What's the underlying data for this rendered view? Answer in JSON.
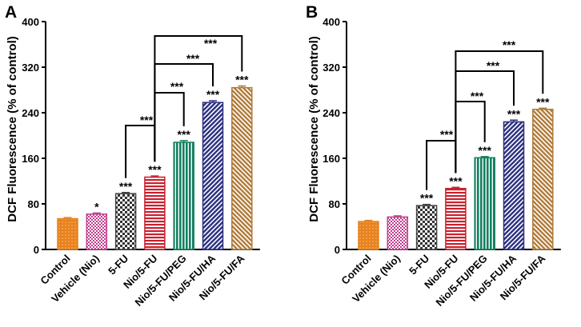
{
  "colors": {
    "orange": "#E8821E",
    "pink": "#C0408E",
    "gray": "#444444",
    "red": "#C8202E",
    "green": "#138060",
    "navy": "#2B2F80",
    "tan": "#B07A38",
    "axis": "#000000"
  },
  "chart_data": [
    {
      "panel_label": "A",
      "type": "bar",
      "ylabel": "DCF Fluorescence (% of control)",
      "ylim": [
        0,
        400
      ],
      "yticks": [
        "0",
        "80",
        "160",
        "240",
        "320",
        "400"
      ],
      "categories": [
        "Control",
        "Vehicle (Nio)",
        "5-FU",
        "Nio/5-FU",
        "Nio/5-FU/PEG",
        "Nio/5-FU/HA",
        "Nio/5-FU/FA"
      ],
      "values": [
        54,
        62,
        98,
        127,
        188,
        258,
        284
      ],
      "errors": [
        2,
        2,
        2,
        2,
        3,
        3,
        3
      ],
      "significance": [
        "",
        "*",
        "***",
        "***",
        "***",
        "***",
        "***"
      ],
      "comparisons": [
        {
          "from": "5-FU",
          "to": "Nio/5-FU",
          "label": "***"
        },
        {
          "from": "Nio/5-FU",
          "to": "Nio/5-FU/PEG",
          "label": "***"
        },
        {
          "from": "Nio/5-FU",
          "to": "Nio/5-FU/HA",
          "label": "***"
        },
        {
          "from": "Nio/5-FU",
          "to": "Nio/5-FU/FA",
          "label": "***"
        }
      ]
    },
    {
      "panel_label": "B",
      "type": "bar",
      "ylabel": "DCF Fluorescence (% of control)",
      "ylim": [
        0,
        400
      ],
      "yticks": [
        "0",
        "80",
        "160",
        "240",
        "320",
        "400"
      ],
      "categories": [
        "Control",
        "Vehicle (Nio)",
        "5-FU",
        "Nio/5-FU",
        "Nio/5-FU/PEG",
        "Nio/5-FU/HA",
        "Nio/5-FU/FA"
      ],
      "values": [
        49,
        57,
        77,
        107,
        161,
        224,
        246
      ],
      "errors": [
        2,
        2,
        2,
        2,
        2,
        3,
        2
      ],
      "significance": [
        "",
        "",
        "***",
        "***",
        "***",
        "***",
        "***"
      ],
      "comparisons": [
        {
          "from": "5-FU",
          "to": "Nio/5-FU",
          "label": "***"
        },
        {
          "from": "Nio/5-FU",
          "to": "Nio/5-FU/PEG",
          "label": "***"
        },
        {
          "from": "Nio/5-FU",
          "to": "Nio/5-FU/HA",
          "label": "***"
        },
        {
          "from": "Nio/5-FU",
          "to": "Nio/5-FU/FA",
          "label": "***"
        }
      ]
    }
  ]
}
